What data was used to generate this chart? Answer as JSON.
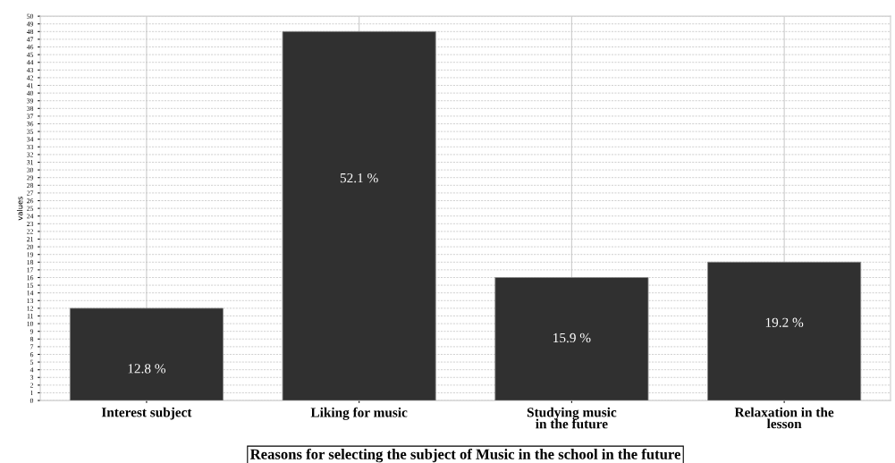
{
  "chart_data": {
    "type": "bar",
    "xlabel": "Reasons for selecting the subject of Music in the school in the future",
    "ylabel": "values",
    "categories": [
      "Interest subject",
      "Liking for music",
      "Studying music\nin the future",
      "Relaxation in the\nlesson"
    ],
    "values": [
      12,
      48,
      16,
      18
    ],
    "color": "#303030",
    "annotations": [
      "12.8 %",
      "52.1 %",
      "15.9 %",
      "19.2 %"
    ],
    "ylim": [
      0,
      50
    ],
    "yticks": [
      0,
      1,
      2,
      3,
      4,
      5,
      6,
      7,
      8,
      9,
      10,
      11,
      12,
      13,
      14,
      15,
      16,
      17,
      18,
      19,
      20,
      21,
      22,
      23,
      24,
      25,
      26,
      27,
      28,
      29,
      30,
      31,
      32,
      33,
      34,
      35,
      36,
      37,
      38,
      39,
      40,
      41,
      42,
      43,
      44,
      45,
      46,
      47,
      48,
      49,
      50
    ],
    "grid": true
  }
}
